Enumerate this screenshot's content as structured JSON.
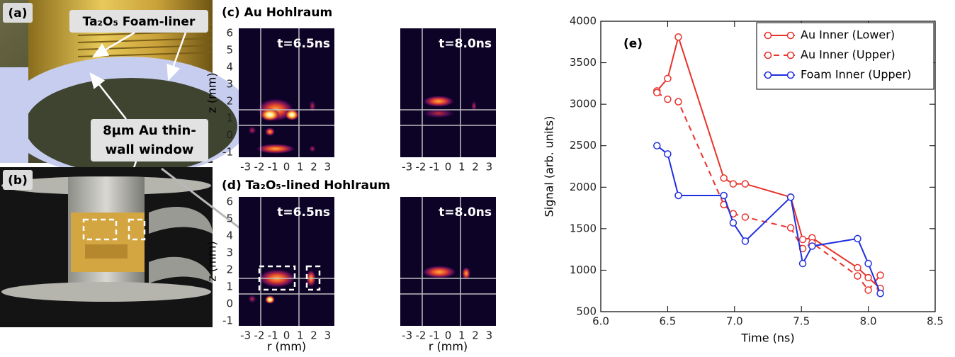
{
  "photo_a": {
    "label": "(a)",
    "liner_callout": "Ta₂O₅ Foam-liner",
    "window_callout": [
      "8µm Au thin-",
      "wall window"
    ]
  },
  "photo_b": {
    "label": "(b)"
  },
  "image_panels": [
    {
      "title": "(c) Au Hohlraum",
      "frames": [
        "t=6.5ns",
        "t=8.0ns"
      ]
    },
    {
      "title": "(d) Ta₂O₅-lined Hohlraum",
      "frames": [
        "t=6.5ns",
        "t=8.0ns"
      ]
    }
  ],
  "image_axes": {
    "xlabel": "r (mm)",
    "ylabel": "z (mm)",
    "xlim": [
      -3.5,
      3.5
    ],
    "ylim": [
      -1.3,
      6.3
    ],
    "xticks": [
      -3,
      -2,
      -1,
      0,
      1,
      2,
      3
    ],
    "yticks": [
      -1,
      0,
      1,
      2,
      3,
      4,
      5,
      6
    ]
  },
  "chart_data": {
    "type": "line",
    "annotation": "(e)",
    "x_label": "Time (ns)",
    "y_label": "Signal (arb. units)",
    "xlim": [
      6.0,
      8.5
    ],
    "ylim": [
      500,
      4000
    ],
    "xticks": [
      {
        "value": 6.0,
        "label": "6.0"
      },
      {
        "value": 6.5,
        "label": "6.5"
      },
      {
        "value": 7.0,
        "label": "7.0"
      },
      {
        "value": 7.5,
        "label": "7.5"
      },
      {
        "value": 8.0,
        "label": "8.0"
      },
      {
        "value": 8.5,
        "label": "8.5"
      }
    ],
    "yticks": [
      500,
      1000,
      1500,
      2000,
      2500,
      3000,
      3500,
      4000
    ],
    "legend": "upper right",
    "series": [
      {
        "name": "Au Inner (Lower)",
        "color": "#e8322b",
        "linestyle": "solid",
        "x": [
          6.42,
          6.5,
          6.58,
          6.92,
          6.99,
          7.08,
          7.42,
          7.51,
          7.58,
          7.92,
          8.0,
          8.09
        ],
        "values": [
          3160,
          3310,
          3810,
          2110,
          2040,
          2040,
          1880,
          1370,
          1390,
          1030,
          910,
          780
        ]
      },
      {
        "name": "Au Inner (Upper)",
        "color": "#e8322b",
        "linestyle": "dashed",
        "x": [
          6.42,
          6.5,
          6.58,
          6.92,
          6.99,
          7.08,
          7.42,
          7.51,
          7.58,
          7.92,
          8.0,
          8.09
        ],
        "values": [
          3140,
          3060,
          3030,
          1790,
          1680,
          1640,
          1510,
          1260,
          1330,
          930,
          760,
          940
        ]
      },
      {
        "name": "Foam Inner (Upper)",
        "color": "#1f2fe0",
        "linestyle": "solid",
        "x": [
          6.42,
          6.5,
          6.58,
          6.92,
          6.99,
          7.08,
          7.42,
          7.51,
          7.58,
          7.92,
          8.0,
          8.09
        ],
        "values": [
          2500,
          2400,
          1900,
          1900,
          1570,
          1350,
          1880,
          1080,
          1290,
          1380,
          1080,
          720
        ]
      }
    ]
  }
}
